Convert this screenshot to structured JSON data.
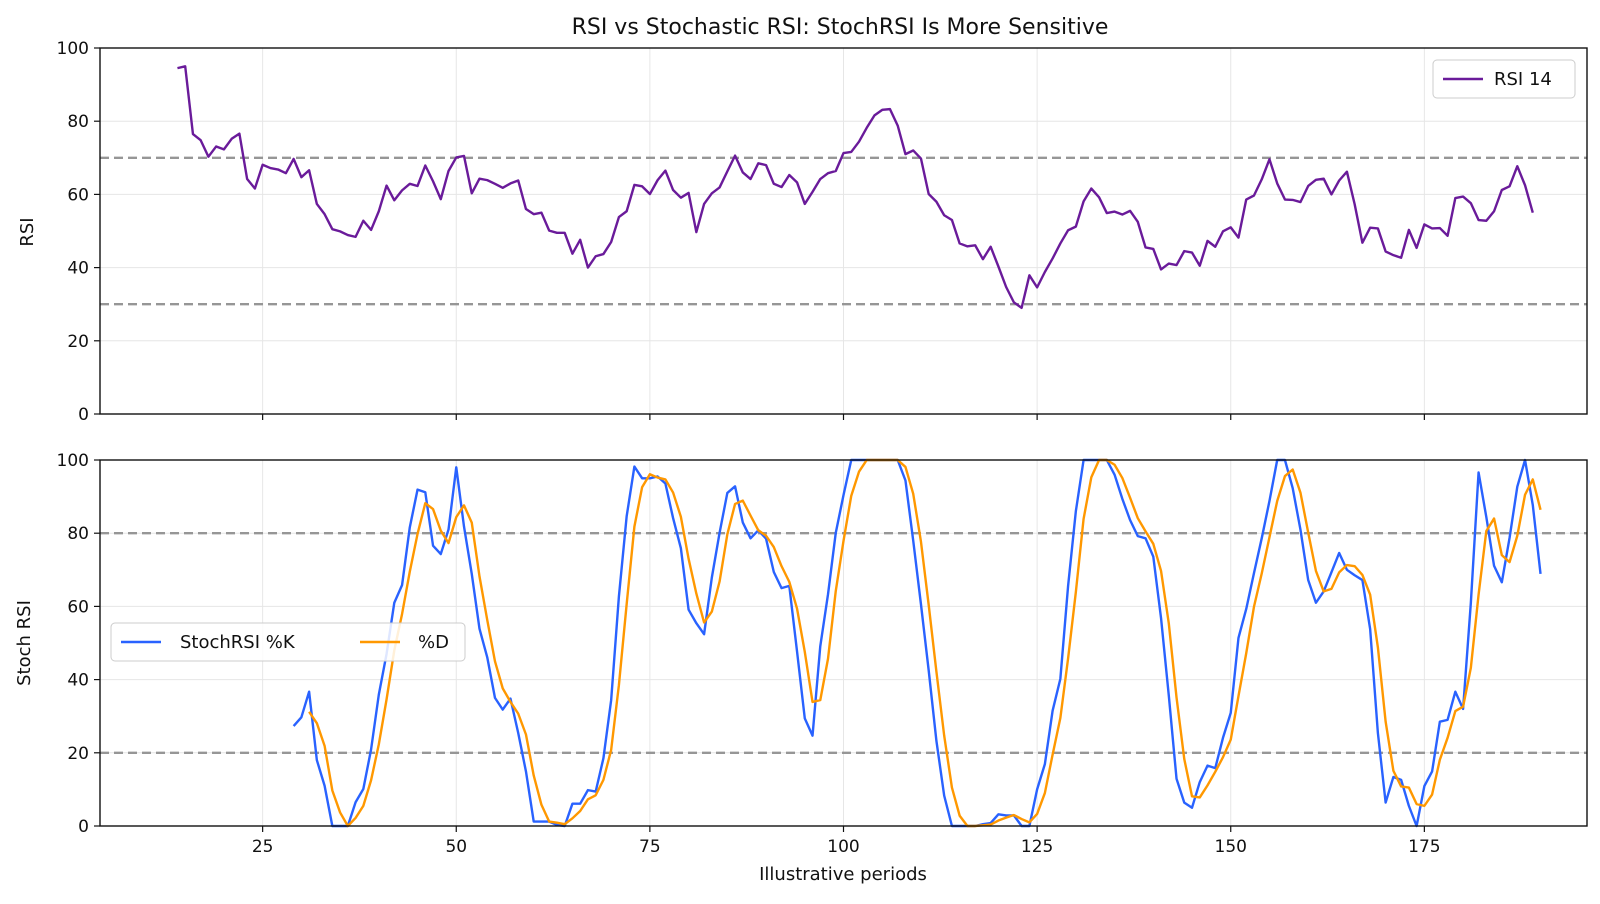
{
  "chart_data": {
    "title": "RSI vs Stochastic RSI: StochRSI Is More Sensitive",
    "xlabel": "Illustrative periods",
    "xlim": [
      4,
      196
    ],
    "xticks": [
      25,
      50,
      75,
      100,
      125,
      150,
      175
    ],
    "grid": true,
    "panels": [
      {
        "type": "line",
        "ylabel": "RSI",
        "ylim": [
          0,
          100
        ],
        "yticks": [
          0,
          20,
          40,
          60,
          80,
          100
        ],
        "reference_lines": [
          70,
          30
        ],
        "legend_position": "top-right",
        "series": [
          {
            "name": "RSI 14",
            "color": "#6a1b9a",
            "x_start": 14,
            "values": [
              94.5,
              95.0,
              76.5,
              74.8,
              70.3,
              73.1,
              72.3,
              75.2,
              76.6,
              64.2,
              61.6,
              68.1,
              67.2,
              66.8,
              65.8,
              69.7,
              64.7,
              66.6,
              57.4,
              54.6,
              50.5,
              49.9,
              48.9,
              48.4,
              52.8,
              50.3,
              55.4,
              62.4,
              58.4,
              61.1,
              62.9,
              62.3,
              67.9,
              63.6,
              58.7,
              66.4,
              70.1,
              70.5,
              60.3,
              64.3,
              63.9,
              62.9,
              61.8,
              63.0,
              63.8,
              56.0,
              54.6,
              55.0,
              50.1,
              49.5,
              49.5,
              43.8,
              47.6,
              40.0,
              43.1,
              43.7,
              47.0,
              53.8,
              55.4,
              62.6,
              62.2,
              60.1,
              63.9,
              66.5,
              61.2,
              59.1,
              60.4,
              49.7,
              57.4,
              60.3,
              61.9,
              66.3,
              70.6,
              66.0,
              64.2,
              68.5,
              68.0,
              62.9,
              62.0,
              65.3,
              63.3,
              57.4,
              60.7,
              64.2,
              65.8,
              66.4,
              71.3,
              71.6,
              74.4,
              78.2,
              81.6,
              83.1,
              83.3,
              78.8,
              71.0,
              72.0,
              69.8,
              60.1,
              58.0,
              54.3,
              53.0,
              46.6,
              45.8,
              46.1,
              42.3,
              45.7,
              40.3,
              34.7,
              30.5,
              29.0,
              37.9,
              34.6,
              38.8,
              42.5,
              46.6,
              50.2,
              51.2,
              58.1,
              61.6,
              59.2,
              54.9,
              55.3,
              54.5,
              55.5,
              52.5,
              45.5,
              45.1,
              39.5,
              41.1,
              40.7,
              44.5,
              44.1,
              40.5,
              47.3,
              45.7,
              49.9,
              51.0,
              48.2,
              58.6,
              59.7,
              64.1,
              69.6,
              63.0,
              58.6,
              58.5,
              57.9,
              62.3,
              64.0,
              64.3,
              60.0,
              63.8,
              66.2,
              57.3,
              46.8,
              50.9,
              50.7,
              44.4,
              43.4,
              42.7,
              50.3,
              45.4,
              51.8,
              50.7,
              50.8,
              48.7,
              59.0,
              59.4,
              57.6,
              53.0,
              52.8,
              55.4,
              61.2,
              62.2,
              67.7,
              62.5,
              55.0
            ]
          }
        ]
      },
      {
        "type": "line",
        "ylabel": "Stoch RSI",
        "ylim": [
          0,
          100
        ],
        "yticks": [
          0,
          20,
          40,
          60,
          80,
          100
        ],
        "reference_lines": [
          80,
          20
        ],
        "legend_position": "center-left",
        "series": [
          {
            "name": "StochRSI %K",
            "color": "#2962ff",
            "x_start": 29,
            "values": [
              27.3,
              29.7,
              36.7,
              18.0,
              11.0,
              0.0,
              0.0,
              0.0,
              6.5,
              10.1,
              20.9,
              35.9,
              47.0,
              61.0,
              65.8,
              81.6,
              91.9,
              91.2,
              76.6,
              74.3,
              81.0,
              98.0,
              81.8,
              68.9,
              53.9,
              46.1,
              35.0,
              31.8,
              34.8,
              25.4,
              14.9,
              1.2,
              1.2,
              1.2,
              0.3,
              0.0,
              6.1,
              6.1,
              9.8,
              9.4,
              18.5,
              34.4,
              62.7,
              84.6,
              98.2,
              95.0,
              95.0,
              95.5,
              93.6,
              84.1,
              75.9,
              59.1,
              55.4,
              52.4,
              67.9,
              80.1,
              91.0,
              92.8,
              82.9,
              78.6,
              80.8,
              78.5,
              69.4,
              65.0,
              65.6,
              47.7,
              29.4,
              24.7,
              49.1,
              63.3,
              80.1,
              90.4,
              100,
              100,
              100,
              100,
              100,
              100,
              100,
              94.4,
              78.0,
              60.6,
              42.5,
              23.2,
              8.3,
              0.0,
              0.0,
              0.0,
              0.0,
              0.5,
              0.8,
              3.2,
              2.9,
              2.9,
              0.0,
              0.0,
              10.0,
              16.9,
              31.5,
              40.2,
              65.6,
              86.0,
              100,
              100,
              100,
              100,
              96.0,
              89.4,
              83.6,
              79.2,
              78.6,
              73.6,
              56.8,
              35.7,
              12.9,
              6.4,
              5.0,
              12.0,
              16.5,
              15.8,
              24.1,
              30.9,
              51.4,
              59.3,
              69.1,
              78.6,
              88.8,
              100,
              100,
              92.3,
              81.0,
              67.2,
              61.0,
              64.1,
              69.3,
              74.6,
              70.0,
              68.5,
              67.2,
              53.8,
              25.4,
              6.4,
              13.4,
              12.6,
              5.5,
              0.0,
              10.9,
              14.9,
              28.5,
              29.0,
              36.7,
              32.0,
              60.9,
              96.6,
              84.4,
              71.1,
              66.6,
              78.7,
              92.7,
              100,
              87.7,
              68.9
            ]
          },
          {
            "name": "%D",
            "color": "#ff9800",
            "x_start": 31,
            "values": [
              31.2,
              28.1,
              21.9,
              9.7,
              3.7,
              0.0,
              2.2,
              5.5,
              12.5,
              22.3,
              34.6,
              48.0,
              57.9,
              69.5,
              79.8,
              88.2,
              86.6,
              80.7,
              77.3,
              84.4,
              87.6,
              82.9,
              68.2,
              56.3,
              45.0,
              37.6,
              33.9,
              30.7,
              25.0,
              13.8,
              5.8,
              1.2,
              0.9,
              0.5,
              2.1,
              4.1,
              7.3,
              8.4,
              12.6,
              20.8,
              38.5,
              60.6,
              81.8,
              92.6,
              96.1,
              95.2,
              94.7,
              91.1,
              84.5,
              73.0,
              63.5,
              55.6,
              58.6,
              66.8,
              79.7,
              88.0,
              88.9,
              84.8,
              80.8,
              79.3,
              76.2,
              71.0,
              66.7,
              59.4,
              47.6,
              33.9,
              34.4,
              45.7,
              64.2,
              77.9,
              90.2,
              96.8,
              100,
              100,
              100,
              100,
              100,
              98.1,
              90.8,
              77.7,
              60.4,
              42.1,
              24.7,
              10.5,
              2.8,
              0.0,
              0.0,
              0.2,
              0.4,
              1.5,
              2.3,
              3.0,
              1.9,
              1.0,
              3.3,
              9.0,
              19.5,
              29.5,
              45.8,
              63.9,
              83.9,
              95.3,
              100,
              100,
              98.7,
              95.1,
              89.7,
              84.1,
              80.5,
              77.1,
              69.7,
              55.4,
              35.1,
              18.3,
              8.1,
              7.8,
              11.1,
              14.8,
              18.8,
              23.6,
              35.5,
              47.2,
              59.9,
              69.0,
              78.9,
              88.8,
              95.6,
              97.4,
              91.1,
              80.2,
              69.7,
              64.1,
              64.8,
              69.3,
              71.3,
              71.0,
              68.6,
              63.2,
              48.8,
              28.5,
              15.1,
              10.8,
              10.5,
              6.0,
              5.5,
              8.6,
              18.1,
              24.1,
              31.4,
              32.6,
              43.2,
              63.2,
              80.6,
              84.0,
              74.0,
              72.1,
              79.3,
              90.5,
              94.7,
              86.4
            ]
          }
        ]
      }
    ]
  }
}
